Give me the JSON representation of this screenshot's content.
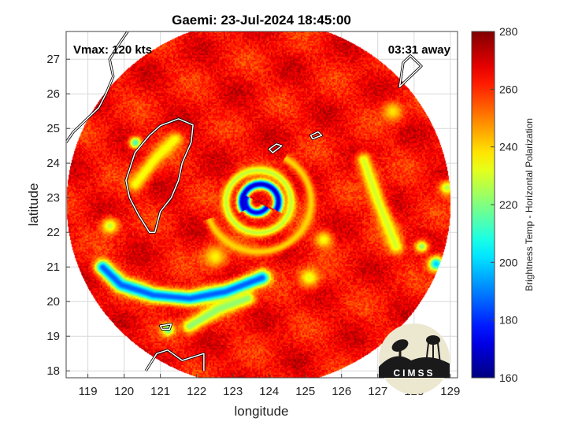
{
  "chart_data": {
    "type": "heatmap",
    "title": "Gaemi: 23-Jul-2024 18:45:00",
    "xlabel": "longitude",
    "ylabel": "latitude",
    "xlim": [
      118.4,
      129.2
    ],
    "ylim": [
      17.8,
      27.8
    ],
    "xticks": [
      119,
      120,
      121,
      122,
      123,
      124,
      125,
      126,
      127,
      128,
      129
    ],
    "yticks": [
      18,
      19,
      20,
      21,
      22,
      23,
      24,
      25,
      26,
      27
    ],
    "grid": true,
    "annotations": {
      "vmax": "Vmax: 120 kts",
      "time_away": "03:31 away"
    },
    "logo_text": "CIMSS",
    "colorbar": {
      "label": "Brightness Temp - Horizontal Polarization",
      "range": [
        160,
        280
      ],
      "ticks": [
        160,
        180,
        200,
        220,
        240,
        260,
        280
      ],
      "colormap": "jet"
    },
    "swath": {
      "center_lon": 123.7,
      "center_lat": 22.85,
      "radius_deg": 5.3,
      "background_value": 264
    },
    "storm_center": {
      "lon": 123.65,
      "lat": 22.9
    },
    "features": [
      {
        "kind": "arc",
        "lon": 123.75,
        "lat": 22.9,
        "r_deg": 0.5,
        "from_deg": -30,
        "to_deg": 210,
        "min_value": 168
      },
      {
        "kind": "arc",
        "lon": 123.65,
        "lat": 22.9,
        "r_deg": 0.32,
        "from_deg": 150,
        "to_deg": 330,
        "min_value": 172
      },
      {
        "kind": "arc",
        "lon": 123.7,
        "lat": 22.9,
        "r_deg": 0.9,
        "from_deg": 0,
        "to_deg": 360,
        "min_value": 228
      },
      {
        "kind": "arc",
        "lon": 123.7,
        "lat": 22.9,
        "r_deg": 1.45,
        "from_deg": 200,
        "to_deg": 420,
        "min_value": 240
      },
      {
        "kind": "band",
        "lon": [
          119.4,
          119.9,
          120.8,
          121.8,
          122.8,
          123.8
        ],
        "lat": [
          21.0,
          20.5,
          20.2,
          20.1,
          20.3,
          20.7
        ],
        "min_value": 186
      },
      {
        "kind": "band",
        "lon": [
          121.8,
          122.6,
          123.4
        ],
        "lat": [
          19.3,
          19.8,
          20.1
        ],
        "min_value": 222
      },
      {
        "kind": "band",
        "lon": [
          126.6,
          127.0,
          127.5
        ],
        "lat": [
          24.1,
          22.9,
          21.6
        ],
        "min_value": 230
      },
      {
        "kind": "band",
        "lon": [
          120.3,
          120.9,
          121.4
        ],
        "lat": [
          23.4,
          24.2,
          24.7
        ],
        "min_value": 234
      },
      {
        "kind": "spot",
        "lon": 128.6,
        "lat": 21.1,
        "r_deg": 0.22,
        "min_value": 198
      },
      {
        "kind": "spot",
        "lon": 128.2,
        "lat": 21.6,
        "r_deg": 0.2,
        "min_value": 222
      },
      {
        "kind": "spot",
        "lon": 120.3,
        "lat": 24.6,
        "r_deg": 0.18,
        "min_value": 212
      },
      {
        "kind": "spot",
        "lon": 121.2,
        "lat": 19.2,
        "r_deg": 0.18,
        "min_value": 214
      },
      {
        "kind": "spot",
        "lon": 128.9,
        "lat": 23.3,
        "r_deg": 0.22,
        "min_value": 226
      },
      {
        "kind": "spot",
        "lon": 125.1,
        "lat": 20.7,
        "r_deg": 0.3,
        "min_value": 232
      },
      {
        "kind": "spot",
        "lon": 125.5,
        "lat": 21.8,
        "r_deg": 0.25,
        "min_value": 234
      },
      {
        "kind": "spot",
        "lon": 127.4,
        "lat": 25.5,
        "r_deg": 0.3,
        "min_value": 238
      },
      {
        "kind": "spot",
        "lon": 122.5,
        "lat": 21.3,
        "r_deg": 0.35,
        "min_value": 236
      },
      {
        "kind": "spot",
        "lon": 119.6,
        "lat": 22.2,
        "r_deg": 0.25,
        "min_value": 228
      }
    ],
    "coastlines": {
      "taiwan": [
        [
          121.0,
          25.08
        ],
        [
          121.5,
          25.28
        ],
        [
          121.9,
          25.1
        ],
        [
          121.85,
          24.6
        ],
        [
          121.6,
          24.0
        ],
        [
          121.5,
          23.5
        ],
        [
          121.3,
          23.0
        ],
        [
          121.0,
          22.6
        ],
        [
          120.85,
          22.0
        ],
        [
          120.7,
          22.0
        ],
        [
          120.4,
          22.5
        ],
        [
          120.15,
          23.0
        ],
        [
          120.05,
          23.5
        ],
        [
          120.3,
          24.3
        ],
        [
          120.7,
          24.8
        ]
      ],
      "china_coast": [
        [
          120.1,
          27.8
        ],
        [
          119.9,
          27.5
        ],
        [
          119.6,
          27.0
        ],
        [
          119.7,
          26.5
        ],
        [
          119.5,
          26.0
        ],
        [
          119.3,
          25.6
        ],
        [
          118.9,
          25.2
        ],
        [
          118.6,
          24.9
        ],
        [
          118.4,
          24.6
        ]
      ],
      "luzon": [
        [
          120.6,
          18.0
        ],
        [
          120.9,
          18.5
        ],
        [
          121.2,
          18.6
        ],
        [
          121.6,
          18.3
        ],
        [
          122.2,
          18.5
        ],
        [
          122.2,
          18.0
        ]
      ],
      "ryukyu_islands": [
        [
          127.6,
          26.2
        ],
        [
          127.9,
          26.5
        ],
        [
          128.2,
          26.8
        ],
        [
          127.9,
          27.1
        ],
        [
          127.7,
          26.9
        ]
      ],
      "babuyan_islands": [
        [
          121.0,
          19.3
        ],
        [
          121.3,
          19.35
        ],
        [
          121.25,
          19.2
        ],
        [
          121.05,
          19.2
        ]
      ],
      "sakishima_islands": [
        [
          124.1,
          24.3
        ],
        [
          124.35,
          24.5
        ],
        [
          124.2,
          24.55
        ],
        [
          124.0,
          24.4
        ]
      ],
      "miyako_island": [
        [
          125.2,
          24.7
        ],
        [
          125.45,
          24.8
        ],
        [
          125.35,
          24.9
        ],
        [
          125.15,
          24.8
        ]
      ]
    }
  }
}
